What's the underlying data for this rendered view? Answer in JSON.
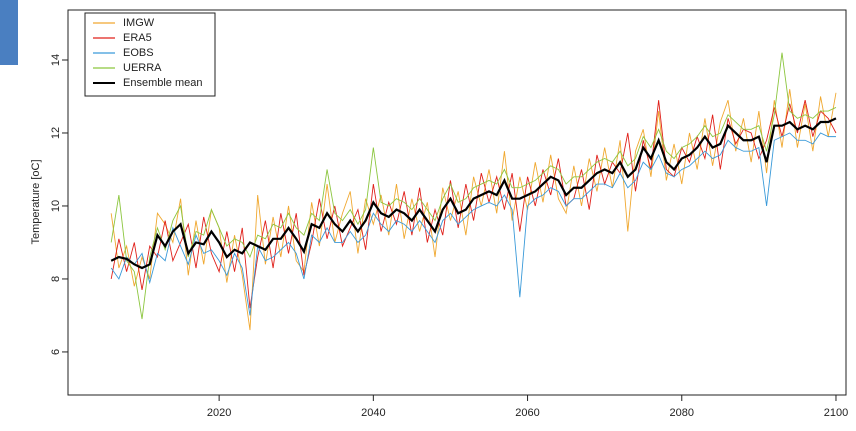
{
  "chart_data": {
    "type": "line",
    "y_label": "Temperature [oC]",
    "x": [
      2006,
      2007,
      2008,
      2009,
      2010,
      2011,
      2012,
      2013,
      2014,
      2015,
      2016,
      2017,
      2018,
      2019,
      2020,
      2021,
      2022,
      2023,
      2024,
      2025,
      2026,
      2027,
      2028,
      2029,
      2030,
      2031,
      2032,
      2033,
      2034,
      2035,
      2036,
      2037,
      2038,
      2039,
      2040,
      2041,
      2042,
      2043,
      2044,
      2045,
      2046,
      2047,
      2048,
      2049,
      2050,
      2051,
      2052,
      2053,
      2054,
      2055,
      2056,
      2057,
      2058,
      2059,
      2060,
      2061,
      2062,
      2063,
      2064,
      2065,
      2066,
      2067,
      2068,
      2069,
      2070,
      2071,
      2072,
      2073,
      2074,
      2075,
      2076,
      2077,
      2078,
      2079,
      2080,
      2081,
      2082,
      2083,
      2084,
      2085,
      2086,
      2087,
      2088,
      2089,
      2090,
      2091,
      2092,
      2093,
      2094,
      2095,
      2096,
      2097,
      2098,
      2099,
      2100
    ],
    "series": [
      {
        "name": "IMGW",
        "color": "#f0a830",
        "values": [
          9.8,
          8.3,
          8.9,
          7.8,
          8.6,
          8.0,
          9.8,
          9.5,
          9.0,
          10.2,
          8.1,
          9.6,
          8.4,
          9.9,
          9.4,
          7.9,
          9.2,
          8.1,
          6.6,
          10.3,
          8.4,
          9.7,
          8.6,
          10.0,
          8.5,
          8.2,
          10.1,
          8.9,
          10.6,
          9.0,
          9.8,
          10.4,
          8.7,
          10.2,
          9.5,
          10.3,
          9.2,
          10.6,
          9.1,
          10.2,
          9.3,
          10.1,
          8.6,
          10.5,
          9.6,
          10.4,
          9.2,
          10.8,
          10.0,
          11.0,
          9.8,
          11.5,
          9.6,
          10.8,
          9.9,
          11.2,
          10.1,
          11.4,
          10.2,
          9.8,
          11.1,
          10.0,
          11.3,
          10.4,
          11.6,
          10.5,
          11.8,
          9.3,
          11.5,
          12.1,
          10.8,
          12.6,
          10.7,
          11.7,
          10.6,
          12.0,
          11.0,
          12.4,
          11.1,
          12.3,
          12.9,
          11.5,
          12.4,
          11.2,
          12.6,
          10.9,
          12.9,
          11.6,
          13.2,
          11.6,
          12.8,
          11.5,
          13.0,
          11.9,
          13.1
        ]
      },
      {
        "name": "ERA5",
        "color": "#e0201a",
        "values": [
          8.0,
          9.1,
          8.2,
          9.0,
          7.7,
          8.9,
          8.6,
          9.6,
          8.5,
          9.0,
          9.5,
          8.3,
          9.7,
          8.7,
          8.2,
          9.3,
          8.2,
          9.4,
          7.2,
          8.6,
          9.6,
          8.3,
          9.8,
          8.7,
          9.8,
          8.1,
          9.0,
          10.2,
          9.1,
          10.0,
          8.9,
          9.4,
          9.9,
          8.8,
          10.6,
          9.3,
          10.1,
          9.5,
          10.4,
          9.2,
          10.5,
          9.0,
          9.9,
          9.2,
          10.7,
          9.4,
          10.6,
          9.6,
          10.9,
          10.1,
          10.8,
          9.9,
          10.9,
          9.3,
          10.8,
          10.0,
          11.0,
          10.3,
          11.3,
          10.0,
          10.2,
          11.0,
          9.9,
          11.4,
          10.6,
          11.2,
          10.9,
          12.0,
          10.4,
          11.8,
          11.0,
          12.9,
          11.0,
          10.8,
          11.6,
          11.2,
          11.9,
          11.3,
          12.5,
          11.0,
          12.4,
          11.7,
          12.1,
          12.0,
          11.3,
          11.8,
          12.7,
          11.9,
          12.8,
          12.0,
          12.9,
          11.9,
          12.6,
          12.4,
          12.0
        ]
      },
      {
        "name": "EOBS",
        "color": "#3a9ad9",
        "values": [
          8.3,
          8.0,
          8.6,
          8.4,
          8.7,
          7.9,
          8.7,
          8.5,
          9.4,
          8.9,
          8.4,
          9.2,
          8.7,
          8.8,
          8.5,
          8.1,
          8.7,
          8.3,
          7.0,
          8.9,
          8.5,
          8.6,
          8.8,
          9.0,
          8.7,
          8.0,
          9.2,
          9.0,
          9.4,
          9.0,
          9.0,
          9.3,
          9.0,
          9.2,
          9.8,
          9.5,
          9.3,
          9.6,
          9.5,
          9.3,
          9.6,
          9.3,
          9.0,
          9.6,
          9.8,
          9.5,
          9.7,
          9.9,
          10.0,
          10.1,
          10.0,
          10.3,
          9.9,
          7.5,
          10.0,
          10.2,
          10.3,
          10.5,
          10.4,
          10.0,
          10.2,
          10.2,
          10.4,
          10.6,
          10.6,
          10.5,
          10.9,
          10.5,
          10.7,
          11.2,
          11.0,
          11.4,
          10.9,
          10.8,
          11.0,
          11.1,
          11.3,
          11.5,
          11.3,
          11.4,
          11.8,
          11.6,
          11.5,
          11.5,
          11.6,
          10.0,
          11.8,
          11.9,
          12.0,
          11.8,
          11.8,
          11.7,
          12.0,
          11.9,
          11.9
        ]
      },
      {
        "name": "UERRA",
        "color": "#8cc63f",
        "values": [
          9.0,
          10.3,
          8.5,
          8.2,
          6.9,
          8.6,
          9.4,
          8.8,
          9.6,
          10.0,
          8.6,
          9.3,
          9.2,
          9.9,
          9.4,
          8.9,
          9.1,
          9.0,
          8.6,
          9.2,
          9.1,
          9.5,
          9.4,
          9.8,
          9.4,
          9.2,
          9.8,
          9.6,
          11.0,
          9.8,
          9.6,
          9.9,
          9.5,
          9.9,
          11.6,
          10.1,
          10.0,
          10.2,
          10.1,
          9.9,
          10.2,
          9.9,
          9.6,
          10.2,
          10.6,
          10.1,
          10.2,
          10.5,
          10.6,
          10.7,
          10.6,
          11.0,
          10.5,
          10.5,
          10.6,
          10.7,
          10.9,
          11.1,
          11.0,
          10.6,
          10.8,
          10.8,
          11.0,
          11.2,
          11.3,
          11.2,
          11.5,
          11.1,
          11.3,
          11.9,
          11.6,
          12.1,
          11.5,
          11.3,
          11.6,
          11.7,
          11.9,
          12.2,
          11.9,
          12.0,
          12.5,
          12.3,
          12.1,
          12.1,
          12.2,
          11.5,
          12.5,
          14.2,
          12.6,
          12.4,
          12.5,
          12.4,
          12.6,
          12.6,
          12.7
        ]
      },
      {
        "name": "Ensemble mean",
        "color": "#000000",
        "values": [
          8.5,
          8.6,
          8.55,
          8.4,
          8.3,
          8.4,
          9.2,
          8.9,
          9.3,
          9.5,
          8.7,
          9.0,
          8.95,
          9.3,
          9.0,
          8.6,
          8.8,
          8.7,
          9.0,
          8.9,
          8.8,
          9.1,
          9.1,
          9.4,
          9.1,
          8.75,
          9.5,
          9.4,
          9.8,
          9.5,
          9.3,
          9.6,
          9.3,
          9.6,
          10.1,
          9.8,
          9.7,
          9.9,
          9.8,
          9.6,
          9.9,
          9.6,
          9.3,
          9.9,
          10.2,
          9.8,
          9.9,
          10.2,
          10.3,
          10.4,
          10.3,
          10.7,
          10.2,
          10.2,
          10.3,
          10.4,
          10.6,
          10.8,
          10.7,
          10.3,
          10.5,
          10.5,
          10.7,
          10.9,
          11.0,
          10.9,
          11.2,
          10.8,
          11.0,
          11.6,
          11.3,
          11.8,
          11.2,
          11.0,
          11.3,
          11.4,
          11.6,
          11.9,
          11.6,
          11.7,
          12.2,
          12.0,
          11.8,
          11.8,
          11.9,
          11.2,
          12.2,
          12.2,
          12.3,
          12.1,
          12.2,
          12.1,
          12.3,
          12.3,
          12.4
        ]
      }
    ],
    "xlim": [
      2000.4,
      2101.3
    ],
    "ylim": [
      4.82,
      15.37
    ],
    "xticks": [
      2020,
      2040,
      2060,
      2080,
      2100
    ],
    "yticks": [
      6,
      8,
      10,
      12,
      14
    ],
    "legend": "top-left"
  }
}
